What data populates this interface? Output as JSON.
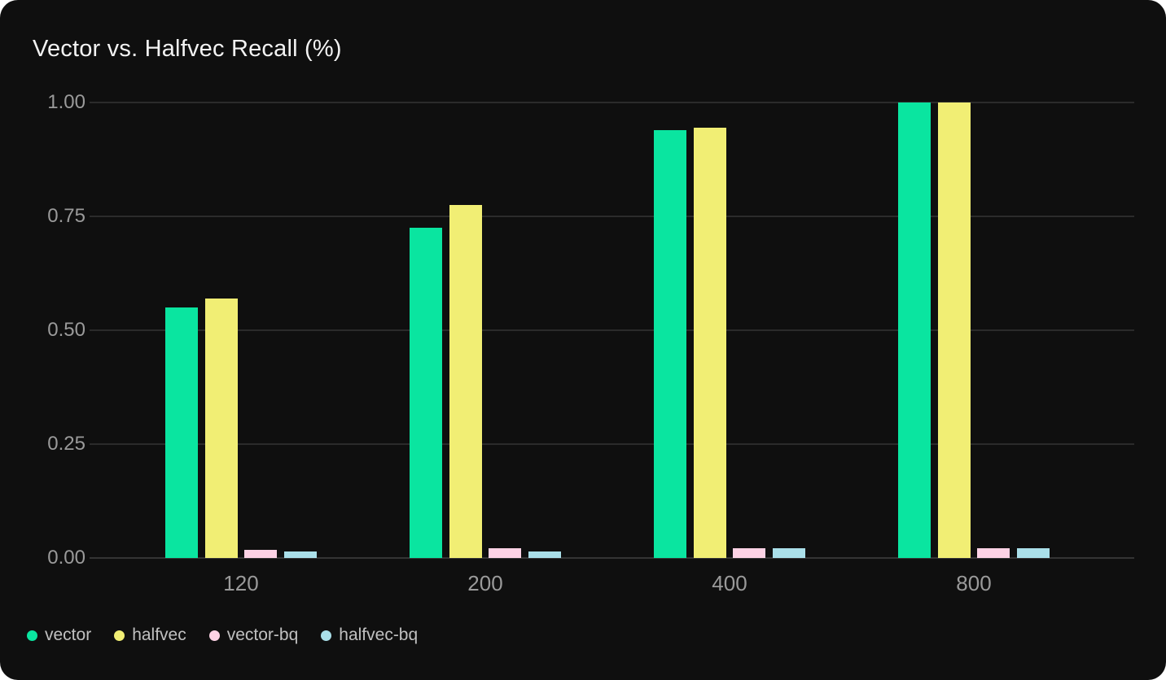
{
  "card": {
    "background": "#0f0f0f"
  },
  "chart_data": {
    "type": "bar",
    "title": "Vector vs. Halfvec Recall (%)",
    "categories": [
      "120",
      "200",
      "400",
      "800"
    ],
    "series": [
      {
        "name": "vector",
        "color": "#0ae5a0",
        "values": [
          0.55,
          0.725,
          0.94,
          1.0
        ]
      },
      {
        "name": "halfvec",
        "color": "#f1ee74",
        "values": [
          0.57,
          0.775,
          0.945,
          1.0
        ]
      },
      {
        "name": "vector-bq",
        "color": "#fdd2e5",
        "values": [
          0.017,
          0.022,
          0.021,
          0.021
        ]
      },
      {
        "name": "halfvec-bq",
        "color": "#aadfe9",
        "values": [
          0.015,
          0.015,
          0.021,
          0.021
        ]
      }
    ],
    "y_ticks": [
      "1.00",
      "0.75",
      "0.50",
      "0.25",
      "0.00"
    ],
    "ylim": [
      0,
      1
    ],
    "grid": true,
    "legend_position": "bottom"
  }
}
